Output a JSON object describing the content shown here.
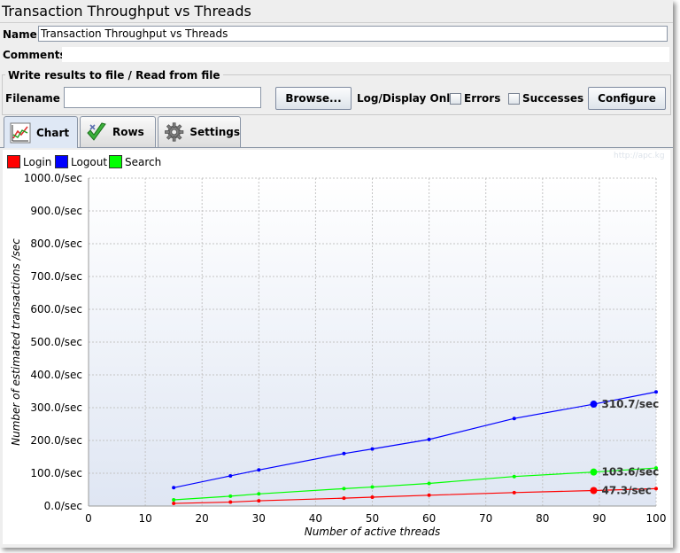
{
  "window": {
    "title": "Transaction Throughput vs Threads"
  },
  "form": {
    "name_label": "Name:",
    "name_value": "Transaction Throughput vs Threads",
    "comments_label": "Comments:",
    "file_section_title": "Write results to file / Read from file",
    "filename_label": "Filename",
    "filename_value": "",
    "browse_label": "Browse...",
    "log_display_label": "Log/Display Only:",
    "errors_label": "Errors",
    "errors_checked": false,
    "successes_label": "Successes",
    "successes_checked": false,
    "configure_label": "Configure"
  },
  "tabs": [
    {
      "label": "Chart",
      "icon": "chart-icon",
      "active": true
    },
    {
      "label": "Rows",
      "icon": "checkmark-icon",
      "active": false
    },
    {
      "label": "Settings",
      "icon": "gear-icon",
      "active": false
    }
  ],
  "watermark": "http://apc.kg",
  "chart_data": {
    "type": "line",
    "xlabel": "Number of active threads",
    "ylabel": "Number of estimated transactions /sec",
    "xlim": [
      0,
      100
    ],
    "ylim": [
      0,
      1000
    ],
    "x_ticks": [
      0,
      10,
      20,
      30,
      40,
      50,
      60,
      70,
      80,
      90,
      100
    ],
    "x_tick_labels": [
      "0",
      "10",
      "20",
      "30",
      "40",
      "50",
      "60",
      "70",
      "80",
      "90",
      "100"
    ],
    "y_ticks": [
      0,
      100,
      200,
      300,
      400,
      500,
      600,
      700,
      800,
      900,
      1000
    ],
    "y_tick_labels": [
      "0.0/sec",
      "100.0/sec",
      "200.0/sec",
      "300.0/sec",
      "400.0/sec",
      "500.0/sec",
      "600.0/sec",
      "700.0/sec",
      "800.0/sec",
      "900.0/sec",
      "1000.0/sec"
    ],
    "grid": true,
    "legend_position": "top-left",
    "series": [
      {
        "name": "Login",
        "color": "#ff0000",
        "x": [
          15,
          25,
          30,
          45,
          50,
          60,
          75,
          89,
          100
        ],
        "y": [
          8,
          12,
          16,
          24,
          27,
          33,
          41,
          47.3,
          53
        ],
        "highlight": {
          "x": 89,
          "y": 47.3,
          "label": "47.3/sec"
        }
      },
      {
        "name": "Logout",
        "color": "#0000ff",
        "x": [
          15,
          25,
          30,
          45,
          50,
          60,
          75,
          89,
          100
        ],
        "y": [
          56,
          92,
          110,
          160,
          174,
          203,
          267,
          310.7,
          348
        ],
        "highlight": {
          "x": 89,
          "y": 310.7,
          "label": "310.7/sec"
        }
      },
      {
        "name": "Search",
        "color": "#00ff00",
        "x": [
          15,
          25,
          30,
          45,
          50,
          60,
          75,
          89,
          100
        ],
        "y": [
          19,
          30,
          37,
          53,
          58,
          69,
          90,
          103.6,
          116
        ],
        "highlight": {
          "x": 89,
          "y": 103.6,
          "label": "103.6/sec"
        }
      }
    ]
  }
}
